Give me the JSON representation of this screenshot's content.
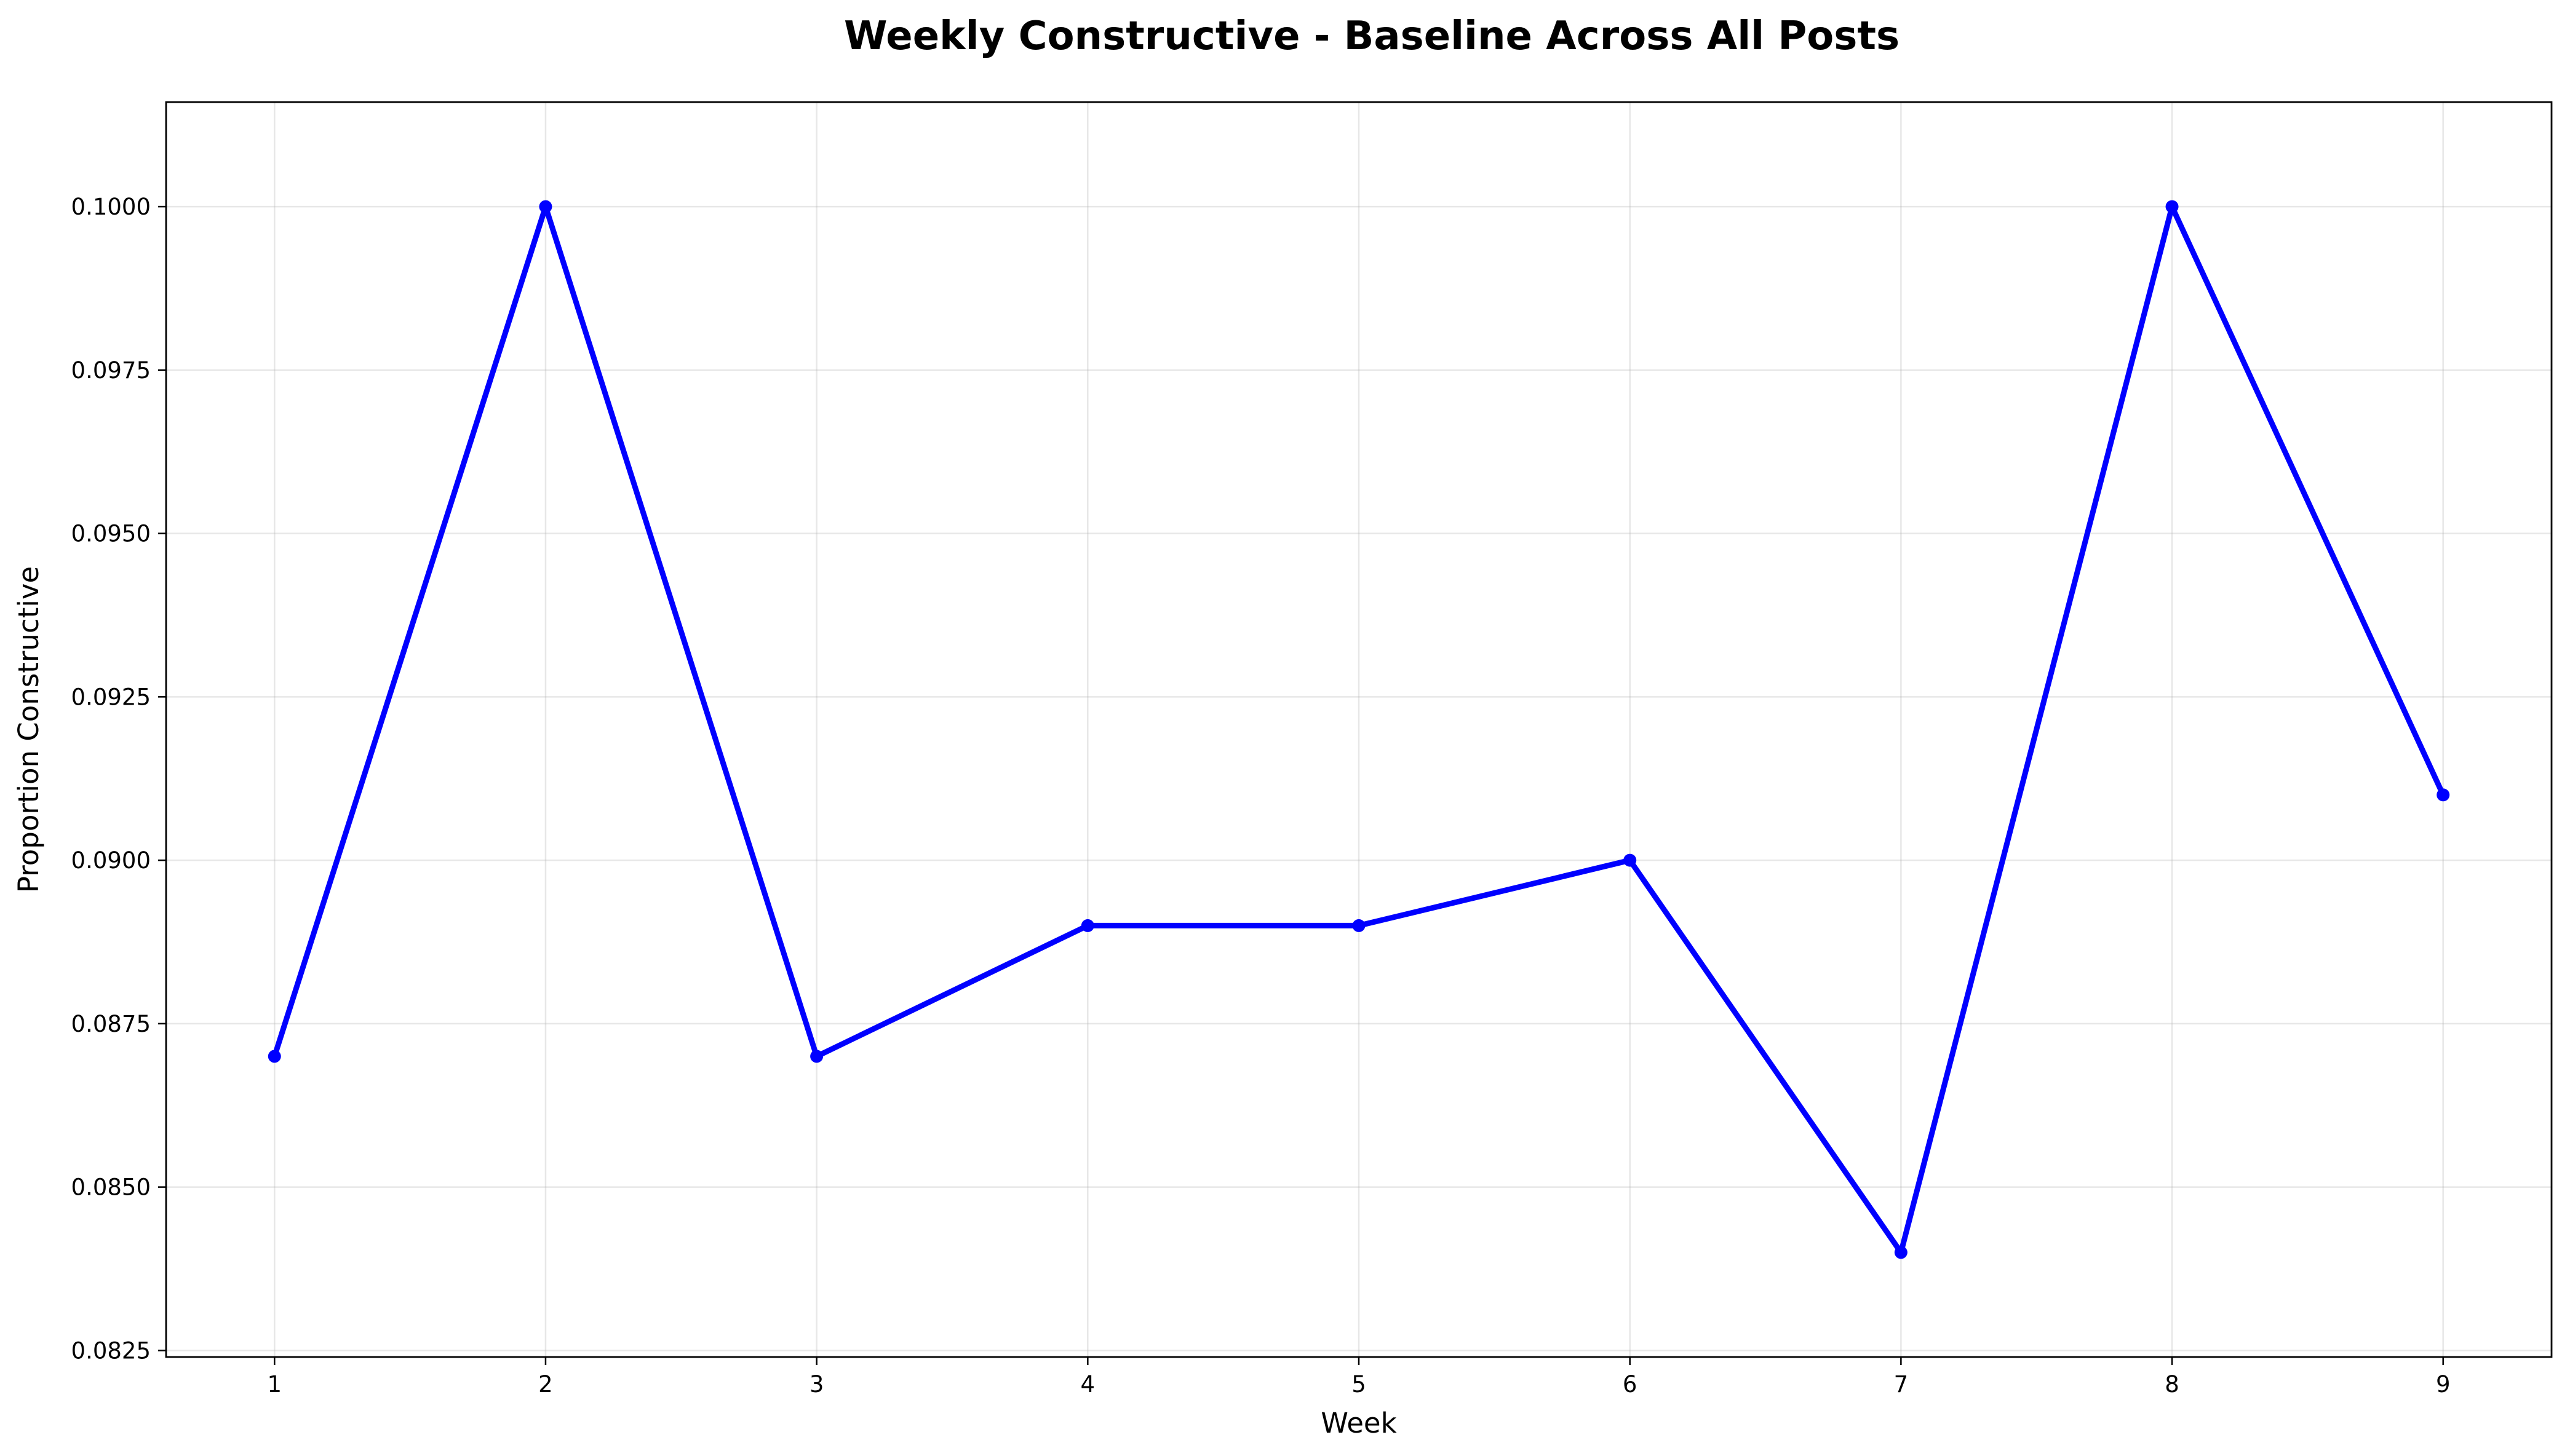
{
  "chart_data": {
    "type": "line",
    "title": "Weekly Constructive - Baseline Across All Posts",
    "xlabel": "Week",
    "ylabel": "Proportion Constructive",
    "x": [
      1,
      2,
      3,
      4,
      5,
      6,
      7,
      8,
      9
    ],
    "series": [
      {
        "values": [
          0.087,
          0.1,
          0.087,
          0.089,
          0.089,
          0.09,
          0.084,
          0.1,
          0.091
        ],
        "color": "#0000ff",
        "marker": "circle"
      }
    ],
    "xlim": [
      0.6,
      9.4
    ],
    "ylim": [
      0.0824,
      0.1016
    ],
    "x_ticks": [
      1,
      2,
      3,
      4,
      5,
      6,
      7,
      8,
      9
    ],
    "x_tick_labels": [
      "1",
      "2",
      "3",
      "4",
      "5",
      "6",
      "7",
      "8",
      "9"
    ],
    "y_ticks": [
      0.0825,
      0.085,
      0.0875,
      0.09,
      0.0925,
      0.095,
      0.0975,
      0.1
    ],
    "y_tick_labels": [
      "0.0825",
      "0.0850",
      "0.0875",
      "0.0900",
      "0.0925",
      "0.0950",
      "0.0975",
      "0.1000"
    ],
    "grid": true,
    "legend": "none"
  }
}
